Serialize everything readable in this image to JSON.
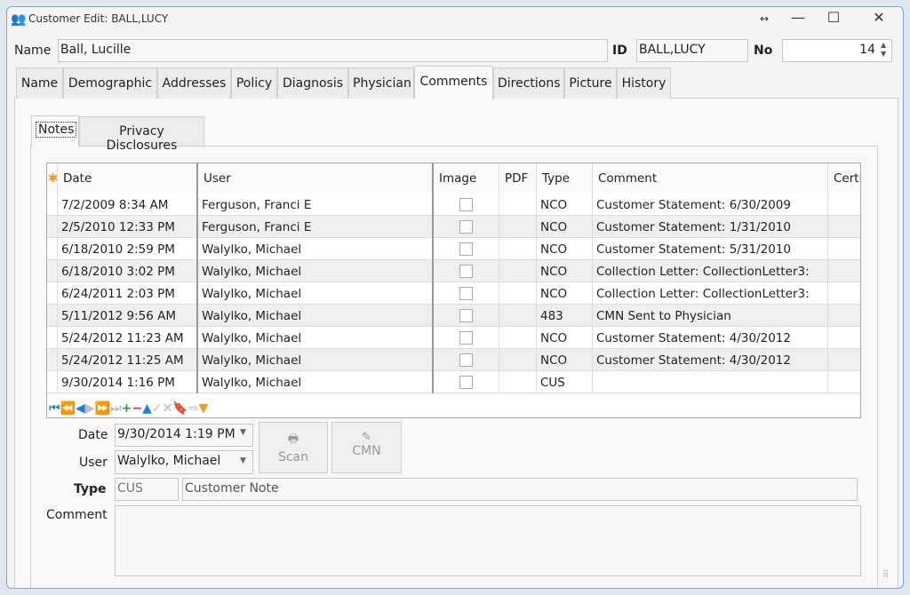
{
  "window": {
    "title": "Customer Edit: BALL,LUCY"
  },
  "header": {
    "name_label": "Name",
    "name_value": "Ball, Lucille",
    "id_label": "ID",
    "id_value": "BALL,LUCY",
    "no_label": "No",
    "no_value": "14"
  },
  "tabs": [
    "Name",
    "Demographic",
    "Addresses",
    "Policy",
    "Diagnosis",
    "Physician",
    "Comments",
    "Directions",
    "Picture",
    "History"
  ],
  "subtabs": [
    "Notes",
    "Privacy Disclosures"
  ],
  "grid": {
    "columns": [
      "Date",
      "User",
      "Image",
      "PDF",
      "Type",
      "Comment",
      "Certi"
    ],
    "rows": [
      [
        "7/2/2009 8:34 AM",
        "Ferguson, Franci E",
        "",
        "NCO",
        "Customer Statement: 6/30/2009"
      ],
      [
        "2/5/2010 12:33 PM",
        "Ferguson, Franci E",
        "",
        "NCO",
        "Customer Statement: 1/31/2010"
      ],
      [
        "6/18/2010 2:59 PM",
        "Walylko, Michael",
        "",
        "NCO",
        "Customer Statement: 5/31/2010"
      ],
      [
        "6/18/2010 3:02 PM",
        "Walylko, Michael",
        "",
        "NCO",
        "Collection Letter: CollectionLetter3:"
      ],
      [
        "6/24/2011 2:03 PM",
        "Walylko, Michael",
        "",
        "NCO",
        "Collection Letter: CollectionLetter3:"
      ],
      [
        "5/11/2012 9:56 AM",
        "Walylko, Michael",
        "",
        "483",
        "CMN Sent to Physician"
      ],
      [
        "5/24/2012 11:23 AM",
        "Walylko, Michael",
        "",
        "NCO",
        "Customer Statement: 4/30/2012"
      ],
      [
        "5/24/2012 11:25 AM",
        "Walylko, Michael",
        "",
        "NCO",
        "Customer Statement: 4/30/2012"
      ],
      [
        "9/30/2014 1:16 PM",
        "Walylko, Michael",
        "",
        "CUS",
        ""
      ]
    ]
  },
  "form": {
    "date_label": "Date",
    "date_value": "9/30/2014 1:19 PM",
    "user_label": "User",
    "user_value": "Walylko, Michael",
    "type_label": "Type",
    "type_code": "CUS",
    "type_desc": "Customer Note",
    "comment_label": "Comment",
    "comment_value": "",
    "scan_label": "Scan",
    "cmn_label": "CMN"
  }
}
